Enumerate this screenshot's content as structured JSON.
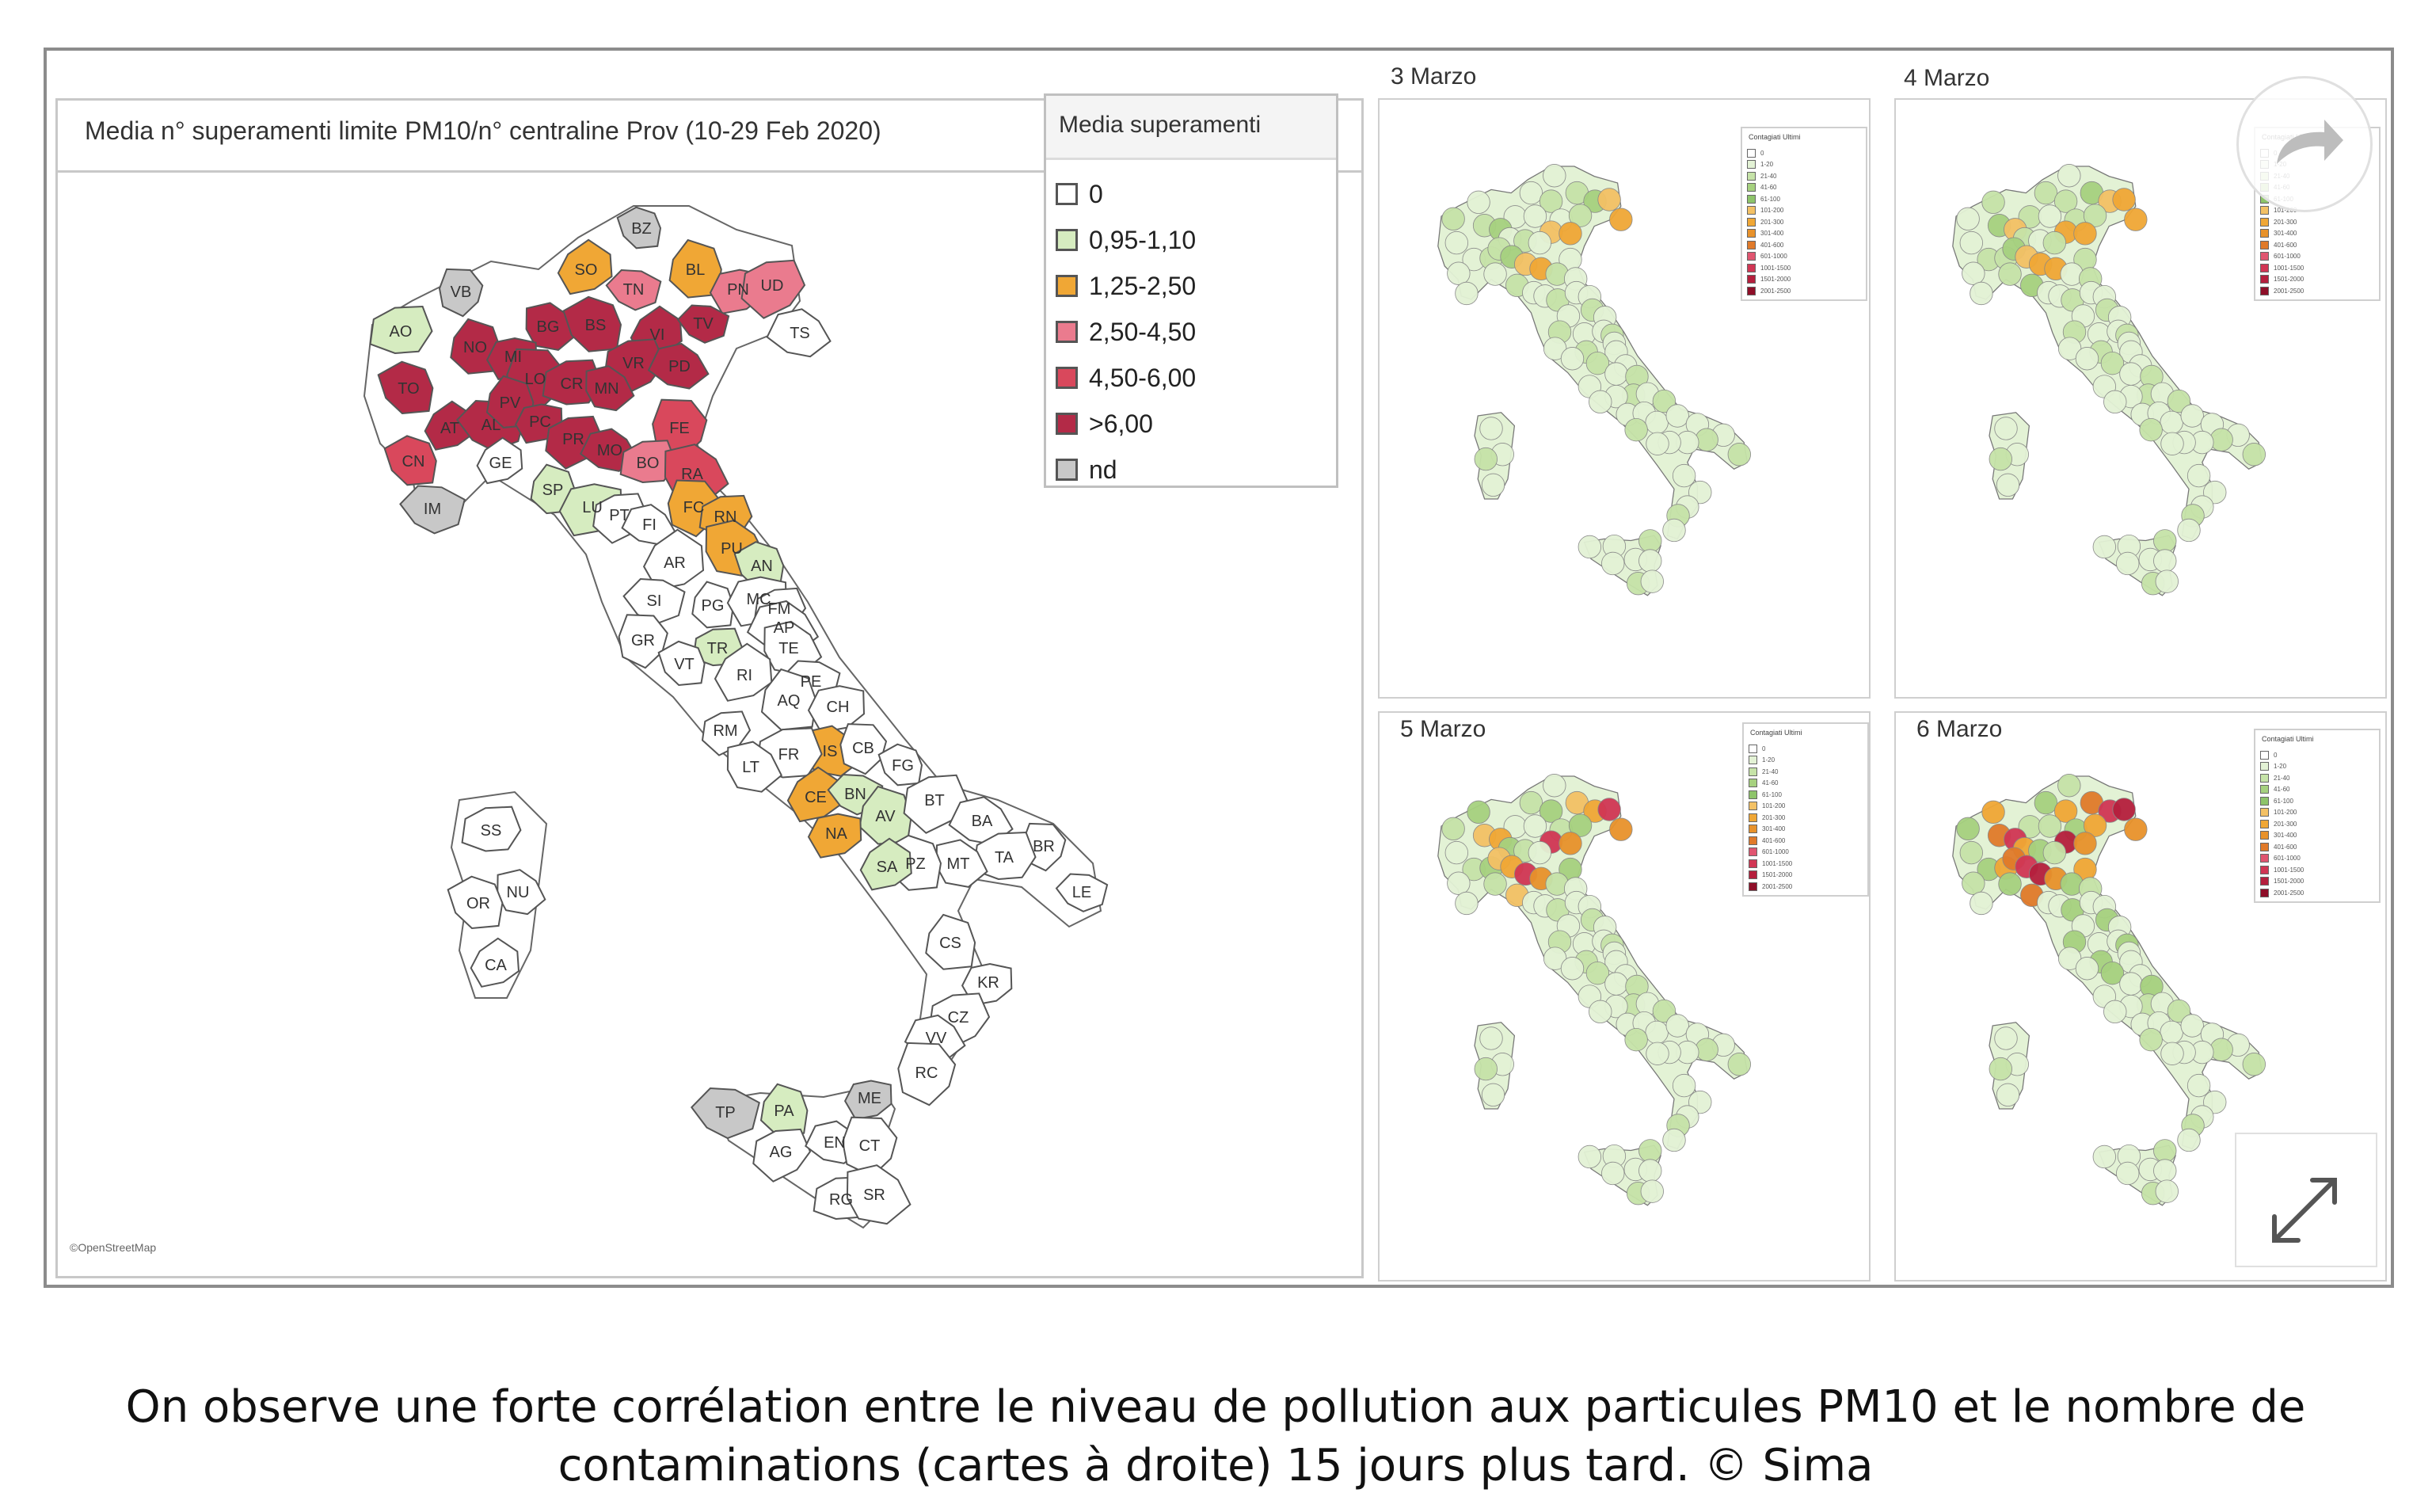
{
  "main_map": {
    "title": "Media n° superamenti limite PM10/n° centraline Prov (10-29 Feb 2020)",
    "attribution": "©OpenStreetMap",
    "legend": {
      "title": "Media superamenti",
      "items": [
        {
          "label": "0",
          "color": "#ffffff"
        },
        {
          "label": "0,95-1,10",
          "color": "#d6ecc0"
        },
        {
          "label": "1,25-2,50",
          "color": "#f0a735"
        },
        {
          "label": "2,50-4,50",
          "color": "#ea7b8e"
        },
        {
          "label": "4,50-6,00",
          "color": "#d9485c"
        },
        {
          "label": ">6,00",
          "color": "#b32a47"
        },
        {
          "label": "nd",
          "color": "#c8c8c8"
        }
      ]
    },
    "provinces": [
      {
        "code": "BZ",
        "color": "#c8c8c8"
      },
      {
        "code": "SO",
        "color": "#f0a735"
      },
      {
        "code": "TN",
        "color": "#ea7b8e"
      },
      {
        "code": "BL",
        "color": "#f0a735"
      },
      {
        "code": "PN",
        "color": "#ea7b8e"
      },
      {
        "code": "UD",
        "color": "#ea7b8e"
      },
      {
        "code": "TS",
        "color": "#ffffff"
      },
      {
        "code": "VB",
        "color": "#c8c8c8"
      },
      {
        "code": "AO",
        "color": "#d6ecc0"
      },
      {
        "code": "BG",
        "color": "#b32a47"
      },
      {
        "code": "BS",
        "color": "#b32a47"
      },
      {
        "code": "VI",
        "color": "#b32a47"
      },
      {
        "code": "TV",
        "color": "#b32a47"
      },
      {
        "code": "NO",
        "color": "#b32a47"
      },
      {
        "code": "MI",
        "color": "#b32a47"
      },
      {
        "code": "VR",
        "color": "#b32a47"
      },
      {
        "code": "PD",
        "color": "#b32a47"
      },
      {
        "code": "LO",
        "color": "#b32a47"
      },
      {
        "code": "CR",
        "color": "#b32a47"
      },
      {
        "code": "MN",
        "color": "#b32a47"
      },
      {
        "code": "TO",
        "color": "#b32a47"
      },
      {
        "code": "AT",
        "color": "#b32a47"
      },
      {
        "code": "AL",
        "color": "#b32a47"
      },
      {
        "code": "PV",
        "color": "#b32a47"
      },
      {
        "code": "PC",
        "color": "#b32a47"
      },
      {
        "code": "PR",
        "color": "#b32a47"
      },
      {
        "code": "MO",
        "color": "#b32a47"
      },
      {
        "code": "FE",
        "color": "#d9485c"
      },
      {
        "code": "BO",
        "color": "#ea7b8e"
      },
      {
        "code": "RA",
        "color": "#d9485c"
      },
      {
        "code": "CN",
        "color": "#d9485c"
      },
      {
        "code": "GE",
        "color": "#ffffff"
      },
      {
        "code": "IM",
        "color": "#c8c8c8"
      },
      {
        "code": "SP",
        "color": "#d6ecc0"
      },
      {
        "code": "LU",
        "color": "#d6ecc0"
      },
      {
        "code": "PT",
        "color": "#ffffff"
      },
      {
        "code": "FI",
        "color": "#ffffff"
      },
      {
        "code": "FC",
        "color": "#f0a735"
      },
      {
        "code": "RN",
        "color": "#f0a735"
      },
      {
        "code": "PU",
        "color": "#f0a735"
      },
      {
        "code": "AN",
        "color": "#d6ecc0"
      },
      {
        "code": "AR",
        "color": "#ffffff"
      },
      {
        "code": "SI",
        "color": "#ffffff"
      },
      {
        "code": "PG",
        "color": "#ffffff"
      },
      {
        "code": "MC",
        "color": "#ffffff"
      },
      {
        "code": "FM",
        "color": "#ffffff"
      },
      {
        "code": "AP",
        "color": "#ffffff"
      },
      {
        "code": "GR",
        "color": "#ffffff"
      },
      {
        "code": "TR",
        "color": "#d6ecc0"
      },
      {
        "code": "TE",
        "color": "#ffffff"
      },
      {
        "code": "VT",
        "color": "#ffffff"
      },
      {
        "code": "RI",
        "color": "#ffffff"
      },
      {
        "code": "PE",
        "color": "#ffffff"
      },
      {
        "code": "AQ",
        "color": "#ffffff"
      },
      {
        "code": "CH",
        "color": "#ffffff"
      },
      {
        "code": "RM",
        "color": "#ffffff"
      },
      {
        "code": "IS",
        "color": "#f0a735"
      },
      {
        "code": "CB",
        "color": "#ffffff"
      },
      {
        "code": "FR",
        "color": "#ffffff"
      },
      {
        "code": "LT",
        "color": "#ffffff"
      },
      {
        "code": "FG",
        "color": "#ffffff"
      },
      {
        "code": "CE",
        "color": "#f0a735"
      },
      {
        "code": "BN",
        "color": "#d6ecc0"
      },
      {
        "code": "AV",
        "color": "#d6ecc0"
      },
      {
        "code": "NA",
        "color": "#f0a735"
      },
      {
        "code": "BT",
        "color": "#ffffff"
      },
      {
        "code": "BA",
        "color": "#ffffff"
      },
      {
        "code": "BR",
        "color": "#ffffff"
      },
      {
        "code": "TA",
        "color": "#ffffff"
      },
      {
        "code": "MT",
        "color": "#ffffff"
      },
      {
        "code": "PZ",
        "color": "#ffffff"
      },
      {
        "code": "SA",
        "color": "#d6ecc0"
      },
      {
        "code": "LE",
        "color": "#ffffff"
      },
      {
        "code": "CS",
        "color": "#ffffff"
      },
      {
        "code": "KR",
        "color": "#ffffff"
      },
      {
        "code": "CZ",
        "color": "#ffffff"
      },
      {
        "code": "VV",
        "color": "#ffffff"
      },
      {
        "code": "RC",
        "color": "#ffffff"
      },
      {
        "code": "SS",
        "color": "#ffffff"
      },
      {
        "code": "NU",
        "color": "#ffffff"
      },
      {
        "code": "OR",
        "color": "#ffffff"
      },
      {
        "code": "CA",
        "color": "#ffffff"
      },
      {
        "code": "TP",
        "color": "#c8c8c8"
      },
      {
        "code": "PA",
        "color": "#d6ecc0"
      },
      {
        "code": "ME",
        "color": "#c8c8c8"
      },
      {
        "code": "AG",
        "color": "#ffffff"
      },
      {
        "code": "EN",
        "color": "#ffffff"
      },
      {
        "code": "CT",
        "color": "#ffffff"
      },
      {
        "code": "RG",
        "color": "#ffffff"
      },
      {
        "code": "SR",
        "color": "#ffffff"
      }
    ]
  },
  "small_maps": [
    {
      "title": "3 Marzo",
      "legend_title": "Contagiati Ultimi"
    },
    {
      "title": "4 Marzo",
      "legend_title": "Contagiati Ultimi"
    },
    {
      "title": "5 Marzo",
      "legend_title": "Contagiati Ultimi"
    },
    {
      "title": "6 Marzo",
      "legend_title": "Contagiati Ultimi"
    }
  ],
  "small_legend_items": [
    {
      "label": "0",
      "color": "#ffffff"
    },
    {
      "label": "1-20",
      "color": "#e3f2d5"
    },
    {
      "label": "21-40",
      "color": "#c6e3a8"
    },
    {
      "label": "41-60",
      "color": "#a6d17f"
    },
    {
      "label": "61-100",
      "color": "#8ec46a"
    },
    {
      "label": "101-200",
      "color": "#f3c165"
    },
    {
      "label": "201-300",
      "color": "#f0a735"
    },
    {
      "label": "301-400",
      "color": "#e8922b"
    },
    {
      "label": "401-600",
      "color": "#e07a2a"
    },
    {
      "label": "601-1000",
      "color": "#e05570"
    },
    {
      "label": "1001-1500",
      "color": "#d13654"
    },
    {
      "label": "1501-2000",
      "color": "#b51f3d"
    },
    {
      "label": "2001-2500",
      "color": "#8e0e28"
    }
  ],
  "caption": "On observe une forte corrélation entre le niveau de pollution aux particules PM10 et le nombre de contaminations (cartes à droite) 15 jours plus tard. © Sima"
}
